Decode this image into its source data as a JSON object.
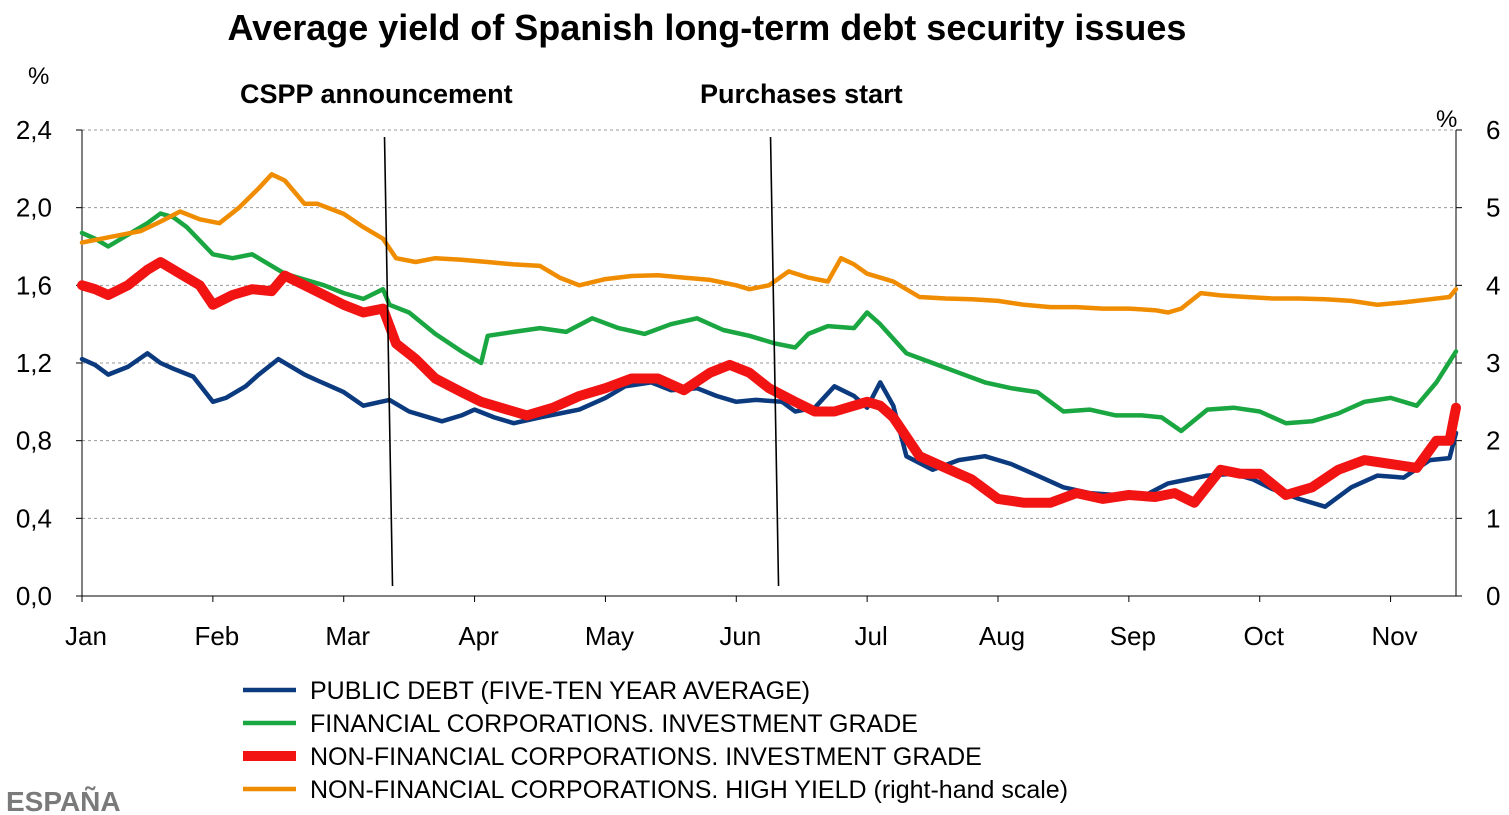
{
  "chart_data": {
    "type": "line",
    "title": "Average yield of Spanish long-term debt security issues",
    "left_unit": "%",
    "right_unit": "%",
    "y_left_lim": [
      0,
      2.4
    ],
    "y_right_lim": [
      0,
      6
    ],
    "y_left_ticks": [
      "0,0",
      "0,4",
      "0,8",
      "1,2",
      "1,6",
      "2,0",
      "2,4"
    ],
    "y_right_ticks": [
      "0",
      "1",
      "2",
      "3",
      "4",
      "5",
      "6"
    ],
    "x_range": [
      0,
      10.5
    ],
    "x_ticks": [
      "Jan",
      "Feb",
      "Mar",
      "Apr",
      "May",
      "Jun",
      "Jul",
      "Aug",
      "Sep",
      "Oct",
      "Nov"
    ],
    "grid": true,
    "annotations": [
      {
        "text": "CSPP announcement",
        "x": 2.35
      },
      {
        "text": "Purchases start",
        "x": 5.3
      }
    ],
    "series": [
      {
        "name": "PUBLIC DEBT (FIVE-TEN YEAR AVERAGE)",
        "axis": "left",
        "color": "#0b3a7e",
        "x": [
          0.0,
          0.1,
          0.2,
          0.35,
          0.5,
          0.6,
          0.7,
          0.85,
          1.0,
          1.1,
          1.25,
          1.35,
          1.5,
          1.7,
          1.8,
          2.0,
          2.15,
          2.35,
          2.5,
          2.75,
          2.9,
          3.0,
          3.15,
          3.3,
          3.5,
          3.65,
          3.8,
          4.0,
          4.15,
          4.35,
          4.5,
          4.7,
          4.85,
          5.0,
          5.15,
          5.35,
          5.45,
          5.6,
          5.75,
          5.9,
          6.0,
          6.1,
          6.2,
          6.3,
          6.5,
          6.7,
          6.9,
          7.1,
          7.3,
          7.5,
          7.7,
          7.9,
          8.1,
          8.3,
          8.45,
          8.6,
          8.8,
          8.95,
          9.1,
          9.3,
          9.5,
          9.7,
          9.9,
          10.1,
          10.3,
          10.45,
          10.5
        ],
        "values": [
          1.22,
          1.19,
          1.14,
          1.18,
          1.25,
          1.2,
          1.17,
          1.13,
          1.0,
          1.02,
          1.08,
          1.14,
          1.22,
          1.14,
          1.11,
          1.05,
          0.98,
          1.01,
          0.95,
          0.9,
          0.93,
          0.96,
          0.92,
          0.89,
          0.92,
          0.94,
          0.96,
          1.02,
          1.08,
          1.1,
          1.06,
          1.07,
          1.03,
          1.0,
          1.01,
          1.0,
          0.95,
          0.97,
          1.08,
          1.03,
          0.97,
          1.1,
          0.98,
          0.72,
          0.65,
          0.7,
          0.72,
          0.68,
          0.62,
          0.56,
          0.53,
          0.52,
          0.51,
          0.58,
          0.6,
          0.62,
          0.63,
          0.6,
          0.55,
          0.5,
          0.46,
          0.56,
          0.62,
          0.61,
          0.7,
          0.71,
          0.84
        ]
      },
      {
        "name": "FINANCIAL CORPORATIONS. INVESTMENT GRADE",
        "axis": "left",
        "color": "#1aa640",
        "x": [
          0.0,
          0.1,
          0.2,
          0.35,
          0.5,
          0.6,
          0.7,
          0.8,
          1.0,
          1.15,
          1.3,
          1.45,
          1.55,
          1.7,
          1.85,
          2.0,
          2.15,
          2.3,
          2.35,
          2.5,
          2.7,
          2.9,
          3.05,
          3.1,
          3.3,
          3.5,
          3.7,
          3.9,
          4.1,
          4.3,
          4.5,
          4.7,
          4.9,
          5.1,
          5.3,
          5.45,
          5.55,
          5.7,
          5.9,
          6.0,
          6.1,
          6.3,
          6.5,
          6.7,
          6.9,
          7.1,
          7.3,
          7.5,
          7.7,
          7.9,
          8.1,
          8.25,
          8.4,
          8.6,
          8.8,
          9.0,
          9.2,
          9.4,
          9.6,
          9.8,
          10.0,
          10.2,
          10.35,
          10.5
        ],
        "values": [
          1.87,
          1.84,
          1.8,
          1.86,
          1.92,
          1.97,
          1.95,
          1.9,
          1.76,
          1.74,
          1.76,
          1.7,
          1.66,
          1.63,
          1.6,
          1.56,
          1.53,
          1.58,
          1.5,
          1.46,
          1.35,
          1.26,
          1.2,
          1.34,
          1.36,
          1.38,
          1.36,
          1.43,
          1.38,
          1.35,
          1.4,
          1.43,
          1.37,
          1.34,
          1.3,
          1.28,
          1.35,
          1.39,
          1.38,
          1.46,
          1.4,
          1.25,
          1.2,
          1.15,
          1.1,
          1.07,
          1.05,
          0.95,
          0.96,
          0.93,
          0.93,
          0.92,
          0.85,
          0.96,
          0.97,
          0.95,
          0.89,
          0.9,
          0.94,
          1.0,
          1.02,
          0.98,
          1.1,
          1.26
        ]
      },
      {
        "name": "NON-FINANCIAL CORPORATIONS. INVESTMENT GRADE",
        "axis": "left",
        "color": "#f21313",
        "x": [
          0.0,
          0.1,
          0.2,
          0.35,
          0.5,
          0.6,
          0.75,
          0.9,
          1.0,
          1.15,
          1.3,
          1.45,
          1.55,
          1.7,
          1.85,
          2.0,
          2.15,
          2.3,
          2.4,
          2.55,
          2.7,
          2.9,
          3.05,
          3.2,
          3.4,
          3.6,
          3.8,
          4.0,
          4.2,
          4.4,
          4.6,
          4.8,
          4.95,
          5.1,
          5.25,
          5.45,
          5.6,
          5.75,
          5.9,
          6.0,
          6.1,
          6.2,
          6.4,
          6.6,
          6.8,
          7.0,
          7.2,
          7.4,
          7.6,
          7.8,
          8.0,
          8.2,
          8.35,
          8.5,
          8.7,
          8.85,
          9.0,
          9.2,
          9.4,
          9.6,
          9.8,
          10.0,
          10.2,
          10.35,
          10.45,
          10.5
        ],
        "values": [
          1.6,
          1.58,
          1.55,
          1.6,
          1.68,
          1.72,
          1.66,
          1.6,
          1.5,
          1.55,
          1.58,
          1.57,
          1.65,
          1.6,
          1.55,
          1.5,
          1.46,
          1.48,
          1.3,
          1.22,
          1.12,
          1.05,
          1.0,
          0.97,
          0.93,
          0.97,
          1.03,
          1.07,
          1.12,
          1.12,
          1.06,
          1.15,
          1.19,
          1.15,
          1.07,
          1.0,
          0.95,
          0.95,
          0.98,
          1.0,
          0.98,
          0.92,
          0.72,
          0.66,
          0.6,
          0.5,
          0.48,
          0.48,
          0.53,
          0.5,
          0.52,
          0.51,
          0.53,
          0.48,
          0.65,
          0.63,
          0.63,
          0.52,
          0.56,
          0.65,
          0.7,
          0.68,
          0.66,
          0.8,
          0.8,
          0.97
        ]
      },
      {
        "name": "NON-FINANCIAL CORPORATIONS. HIGH YIELD (right-hand scale)",
        "axis": "right",
        "color": "#f08c00",
        "x": [
          0.0,
          0.15,
          0.3,
          0.45,
          0.6,
          0.75,
          0.9,
          1.05,
          1.2,
          1.35,
          1.45,
          1.55,
          1.7,
          1.8,
          2.0,
          2.15,
          2.3,
          2.4,
          2.55,
          2.7,
          2.9,
          3.1,
          3.3,
          3.5,
          3.65,
          3.8,
          4.0,
          4.2,
          4.4,
          4.6,
          4.8,
          5.0,
          5.1,
          5.25,
          5.4,
          5.55,
          5.7,
          5.8,
          5.9,
          6.0,
          6.2,
          6.4,
          6.6,
          6.8,
          7.0,
          7.2,
          7.4,
          7.6,
          7.8,
          8.0,
          8.2,
          8.3,
          8.4,
          8.55,
          8.7,
          8.9,
          9.1,
          9.3,
          9.5,
          9.7,
          9.9,
          10.1,
          10.3,
          10.45,
          10.5
        ],
        "values": [
          4.55,
          4.6,
          4.65,
          4.7,
          4.82,
          4.95,
          4.85,
          4.8,
          5.0,
          5.25,
          5.43,
          5.35,
          5.05,
          5.05,
          4.92,
          4.75,
          4.6,
          4.35,
          4.3,
          4.35,
          4.33,
          4.3,
          4.27,
          4.25,
          4.1,
          4.0,
          4.08,
          4.12,
          4.13,
          4.1,
          4.07,
          4.0,
          3.95,
          4.0,
          4.18,
          4.1,
          4.05,
          4.35,
          4.27,
          4.15,
          4.05,
          3.85,
          3.83,
          3.82,
          3.8,
          3.75,
          3.72,
          3.72,
          3.7,
          3.7,
          3.68,
          3.65,
          3.7,
          3.9,
          3.87,
          3.85,
          3.83,
          3.83,
          3.82,
          3.8,
          3.75,
          3.78,
          3.82,
          3.85,
          3.95
        ]
      }
    ]
  },
  "watermark": "ESPAÑA"
}
